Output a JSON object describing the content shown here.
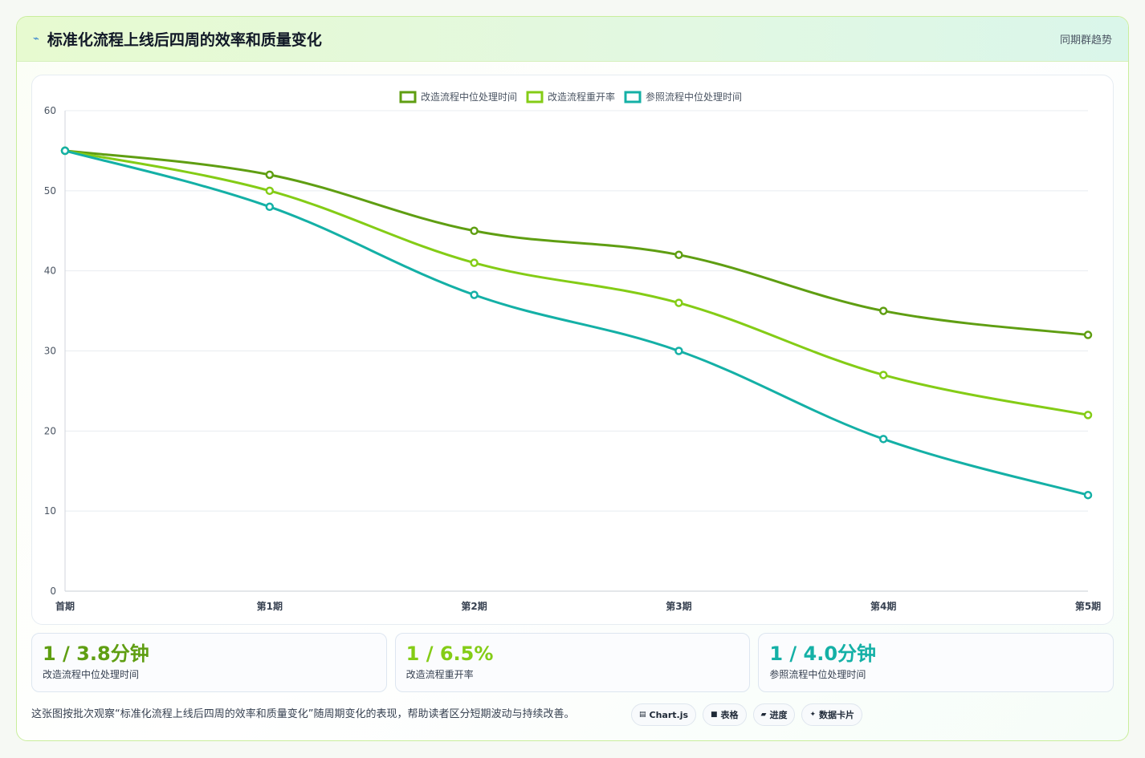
{
  "header": {
    "title": "标准化流程上线后四周的效率和质量变化",
    "tag": "同期群趋势"
  },
  "chart_data": {
    "type": "line",
    "categories": [
      "首期",
      "第1期",
      "第2期",
      "第3期",
      "第4期",
      "第5期"
    ],
    "series": [
      {
        "name": "改造流程中位处理时间",
        "color": "#5f9e12",
        "values": [
          55,
          52,
          45,
          42,
          35,
          32
        ]
      },
      {
        "name": "改造流程重开率",
        "color": "#84cc16",
        "values": [
          55,
          50,
          41,
          36,
          27,
          22
        ]
      },
      {
        "name": "参照流程中位处理时间",
        "color": "#14b0a6",
        "values": [
          55,
          48,
          37,
          30,
          19,
          12
        ]
      }
    ],
    "ylim": [
      0,
      60
    ],
    "yticks": [
      0,
      10,
      20,
      30,
      40,
      50,
      60
    ],
    "grid": true,
    "legend": "top-center"
  },
  "stats": [
    {
      "value": "1 / 3.8分钟",
      "label": "改造流程中位处理时间",
      "color": "#5f9e12"
    },
    {
      "value": "1 / 6.5%",
      "label": "改造流程重开率",
      "color": "#84cc16"
    },
    {
      "value": "1 / 4.0分钟",
      "label": "参照流程中位处理时间",
      "color": "#14b0a6"
    }
  ],
  "footer": {
    "note": "这张图按批次观察“标准化流程上线后四周的效率和质量变化”随周期变化的表现，帮助读者区分短期波动与持续改善。",
    "pills": [
      {
        "icon": "chart-icon",
        "glyph": "▤",
        "label": "Chart.js"
      },
      {
        "icon": "table-icon",
        "glyph": "■",
        "label": "表格"
      },
      {
        "icon": "progress-icon",
        "glyph": "▰",
        "label": "进度"
      },
      {
        "icon": "sparkle-icon",
        "glyph": "✦",
        "label": "数据卡片"
      }
    ]
  }
}
